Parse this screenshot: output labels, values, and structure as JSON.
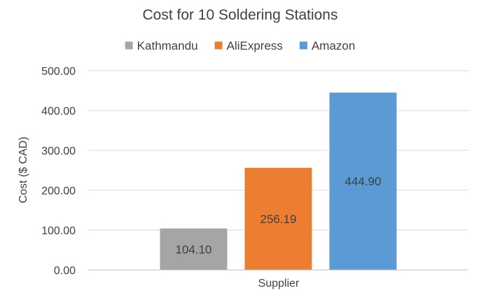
{
  "chart_data": {
    "type": "bar",
    "title": "Cost for 10 Soldering Stations",
    "xlabel": "Supplier",
    "ylabel": "Cost ($ CAD)",
    "categories": [
      "Supplier"
    ],
    "series": [
      {
        "name": "Kathmandu",
        "values": [
          104.1
        ],
        "label": "104.10",
        "color": "#a5a5a5"
      },
      {
        "name": "AliExpress",
        "values": [
          256.19
        ],
        "label": "256.19",
        "color": "#ed7d31"
      },
      {
        "name": "Amazon",
        "values": [
          444.9
        ],
        "label": "444.90",
        "color": "#5b9bd5"
      }
    ],
    "ylim": [
      0,
      500
    ],
    "yticks": [
      0,
      100,
      200,
      300,
      400,
      500
    ],
    "ytick_labels": [
      "0.00",
      "100.00",
      "200.00",
      "300.00",
      "400.00",
      "500.00"
    ],
    "grid": true,
    "legend_position": "top"
  }
}
